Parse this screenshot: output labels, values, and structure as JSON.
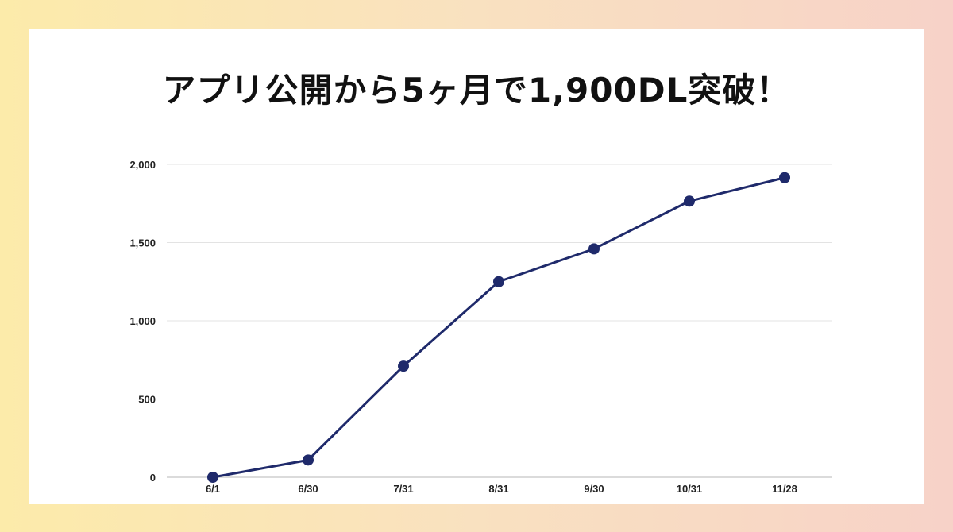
{
  "title": "アプリ公開から5ヶ月で1,900DL突破！",
  "colors": {
    "line": "#1f2a6b",
    "grid": "#e3e3e3",
    "axis": "#cfcfcf"
  },
  "chart_data": {
    "type": "line",
    "categories": [
      "6/1",
      "6/30",
      "7/31",
      "8/31",
      "9/30",
      "10/31",
      "11/28"
    ],
    "series": [
      {
        "values": [
          0,
          110,
          710,
          1250,
          1460,
          1765,
          1915
        ]
      }
    ],
    "ylim": [
      0,
      2000
    ],
    "yticks": [
      0,
      500,
      1000,
      1500,
      2000
    ],
    "ytick_labels": [
      "0",
      "500",
      "1,000",
      "1,500",
      "2,000"
    ],
    "grid": true,
    "legend": "none"
  }
}
